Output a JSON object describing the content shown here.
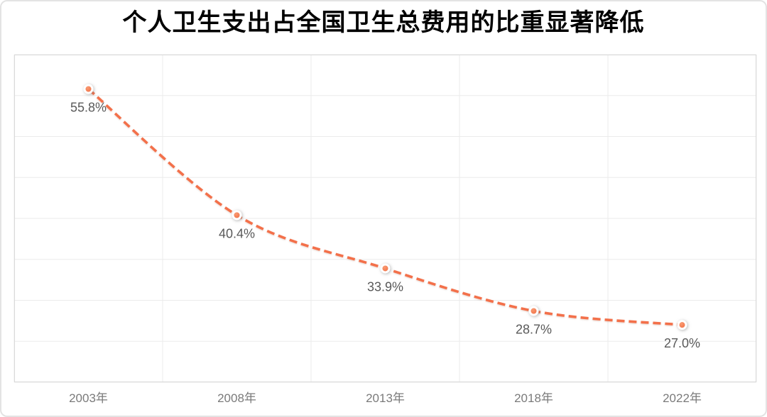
{
  "chart_data": {
    "type": "line",
    "title": "个人卫生支出占全国卫生总费用的比重显著降低",
    "categories": [
      "2003年",
      "2008年",
      "2013年",
      "2018年",
      "2022年"
    ],
    "values": [
      55.8,
      40.4,
      33.9,
      28.7,
      27.0
    ],
    "point_labels": [
      "55.8%",
      "40.4%",
      "33.9%",
      "28.7%",
      "27.0%"
    ],
    "xlabel": "",
    "ylabel": "",
    "ylim": [
      20,
      60
    ],
    "y_grid_step": 5,
    "x_grid_columns": 5,
    "y_grid_rows": 8,
    "grid": true,
    "legend_position": "none",
    "y_axis_tick_labels_visible": false,
    "line": {
      "style": "dashed",
      "smooth": true,
      "width": 3.6,
      "dash": [
        11,
        6
      ]
    },
    "marker": {
      "shape": "circle",
      "core_radius": 5.5,
      "ring_width": 3
    },
    "colors": {
      "line": "#f3704a",
      "marker_core_inner": "#f89a72",
      "marker_core_outer": "#f1663a",
      "marker_ring": "#ffffff",
      "point_label": "#595959",
      "axis_label": "#7a7a7a",
      "gridline": "#ebebeb",
      "plot_border": "#d9d9d9",
      "card_border": "#e3e3e3",
      "title": "#000000",
      "background": "#ffffff"
    }
  }
}
